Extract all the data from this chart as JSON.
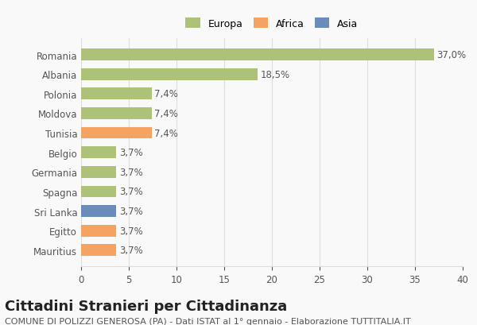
{
  "countries": [
    "Romania",
    "Albania",
    "Polonia",
    "Moldova",
    "Tunisia",
    "Belgio",
    "Germania",
    "Spagna",
    "Sri Lanka",
    "Egitto",
    "Mauritius"
  ],
  "values": [
    37.0,
    18.5,
    7.4,
    7.4,
    7.4,
    3.7,
    3.7,
    3.7,
    3.7,
    3.7,
    3.7
  ],
  "labels": [
    "37,0%",
    "18,5%",
    "7,4%",
    "7,4%",
    "7,4%",
    "3,7%",
    "3,7%",
    "3,7%",
    "3,7%",
    "3,7%",
    "3,7%"
  ],
  "colors": [
    "#adc178",
    "#adc178",
    "#adc178",
    "#adc178",
    "#f4a460",
    "#adc178",
    "#adc178",
    "#adc178",
    "#6b8cba",
    "#f4a460",
    "#f4a460"
  ],
  "legend_labels": [
    "Europa",
    "Africa",
    "Asia"
  ],
  "legend_colors": [
    "#adc178",
    "#f4a460",
    "#6b8cba"
  ],
  "title": "Cittadini Stranieri per Cittadinanza",
  "subtitle": "COMUNE DI POLIZZI GENEROSA (PA) - Dati ISTAT al 1° gennaio - Elaborazione TUTTITALIA.IT",
  "xlim": [
    0,
    40
  ],
  "xticks": [
    0,
    5,
    10,
    15,
    20,
    25,
    30,
    35,
    40
  ],
  "background_color": "#f9f9f9",
  "grid_color": "#dddddd",
  "title_fontsize": 13,
  "subtitle_fontsize": 8,
  "label_fontsize": 8.5,
  "tick_fontsize": 8.5
}
